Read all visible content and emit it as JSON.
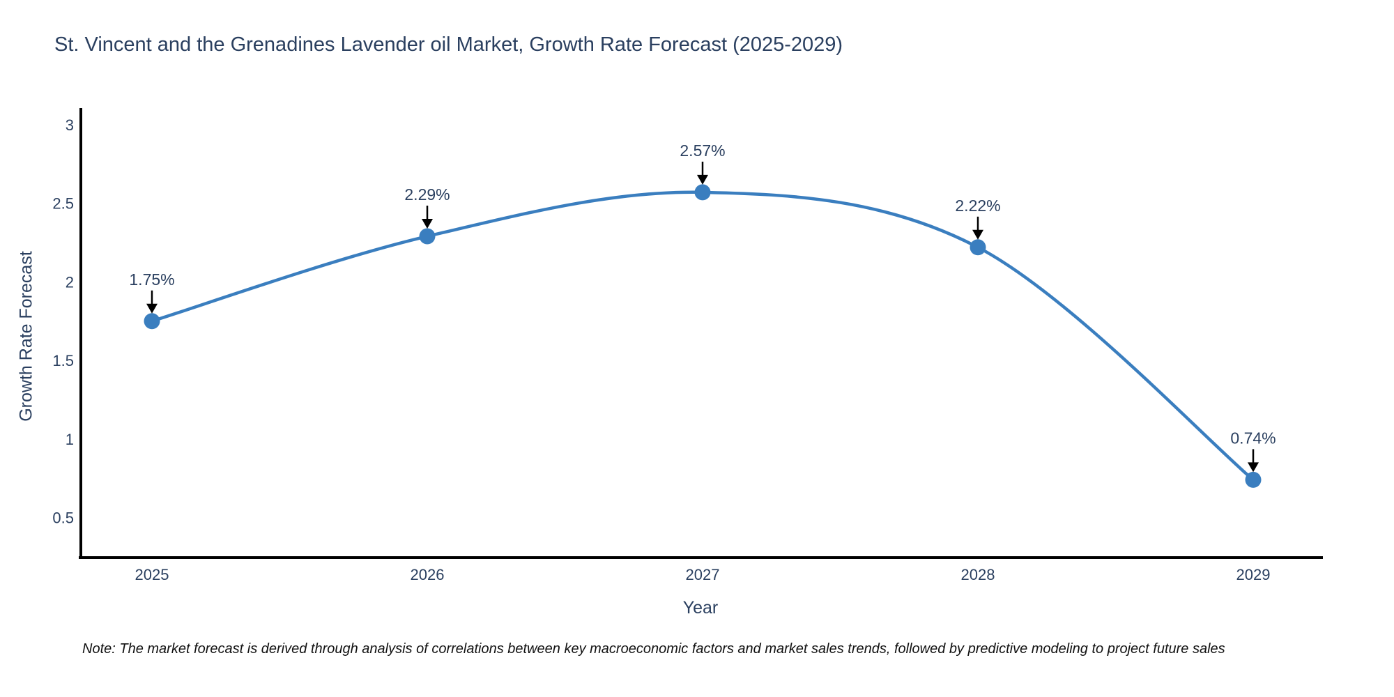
{
  "title": "St. Vincent and the Grenadines Lavender oil Market, Growth Rate Forecast (2025-2029)",
  "footer_note": "Note: The market forecast is derived through analysis of correlations between key macroeconomic factors and market sales trends, followed by predictive modeling to project future sales",
  "colors": {
    "line": "#3a7ebf",
    "marker": "#3a7ebf",
    "axis_line": "#000000",
    "tick_text": "#2a3f5f",
    "title_text": "#2a3f5f",
    "annotation_text": "#2a3f5f",
    "annotation_arrow": "#000000"
  },
  "chart_data": {
    "type": "line",
    "line_shape": "spline",
    "title": "St. Vincent and the Grenadines Lavender oil Market, Growth Rate Forecast (2025-2029)",
    "xlabel": "Year",
    "ylabel": "Growth Rate Forecast",
    "x": [
      2025,
      2026,
      2027,
      2028,
      2029
    ],
    "y": [
      1.75,
      2.29,
      2.57,
      2.22,
      0.74
    ],
    "point_labels": [
      "1.75%",
      "2.29%",
      "2.57%",
      "2.22%",
      "0.74%"
    ],
    "xtick_values": [
      2025,
      2026,
      2027,
      2028,
      2029
    ],
    "xtick_labels": [
      "2025",
      "2026",
      "2027",
      "2028",
      "2029"
    ],
    "ytick_values": [
      3,
      2.5,
      2,
      1.5,
      1,
      0.5
    ],
    "ytick_labels": [
      "3",
      "2.5",
      "2",
      "1.5",
      "1",
      "0.5"
    ],
    "xlim": [
      2024.73,
      2029.25
    ],
    "ylim": [
      0.245,
      3.08
    ],
    "grid": false,
    "legend": false
  }
}
